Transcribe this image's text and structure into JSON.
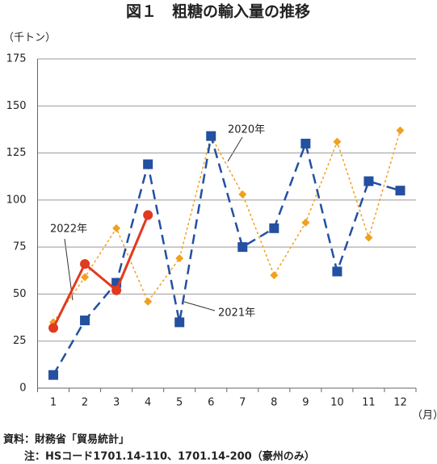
{
  "chart_data": {
    "type": "line",
    "title": "図１　粗糖の輸入量の推移",
    "y_unit": "（千トン）",
    "x_unit": "（月）",
    "source": "資料：財務省「貿易統計」",
    "note": "注：HSコード1701.14-110、1701.14-200（豪州のみ）",
    "categories": [
      "1",
      "2",
      "3",
      "4",
      "5",
      "6",
      "7",
      "8",
      "9",
      "10",
      "11",
      "12"
    ],
    "ylim": [
      0,
      175
    ],
    "yticks": [
      0,
      25,
      50,
      75,
      100,
      125,
      150,
      175
    ],
    "grid": true,
    "series": [
      {
        "name": "2020年",
        "color": "#f0a020",
        "dash": "3,3",
        "marker": "diamond",
        "width": 1.5,
        "values": [
          35,
          59,
          85,
          46,
          69,
          134,
          103,
          60,
          88,
          131,
          80,
          137
        ]
      },
      {
        "name": "2021年",
        "color": "#2350a0",
        "dash": "12,7",
        "marker": "square",
        "width": 2.5,
        "values": [
          7,
          36,
          56,
          119,
          35,
          134,
          75,
          85,
          130,
          62,
          110,
          105
        ]
      },
      {
        "name": "2022年",
        "color": "#e03a20",
        "dash": "",
        "marker": "circle",
        "width": 3,
        "values": [
          32,
          66,
          52,
          92,
          null,
          null,
          null,
          null,
          null,
          null,
          null,
          null
        ]
      }
    ]
  }
}
